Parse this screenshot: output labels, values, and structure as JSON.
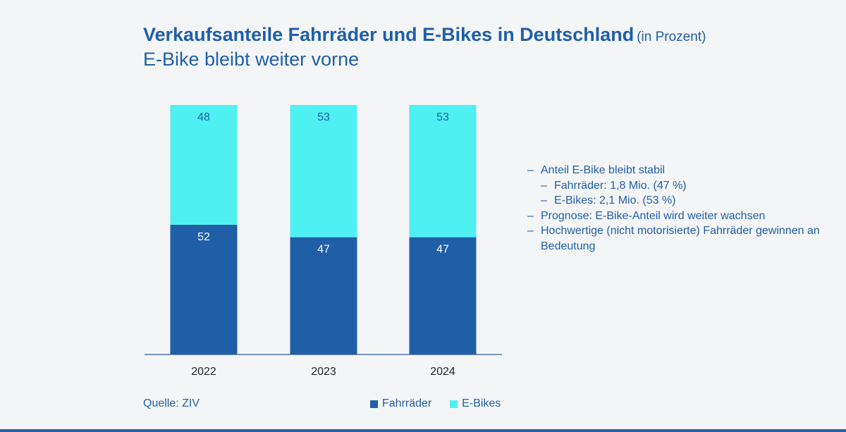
{
  "header": {
    "title": "Verkaufsanteile Fahrräder und E-Bikes in Deutschland",
    "title_unit": "(in Prozent)",
    "subtitle": "E-Bike bleibt weiter vorne"
  },
  "colors": {
    "fahrraeder": "#1f5fa8",
    "ebikes": "#4ef0f2",
    "text": "#1f5fa8"
  },
  "chart_data": {
    "type": "bar",
    "stacked": true,
    "categories": [
      "2022",
      "2023",
      "2024"
    ],
    "series": [
      {
        "name": "Fahrräder",
        "values": [
          52,
          47,
          47
        ]
      },
      {
        "name": "E-Bikes",
        "values": [
          48,
          53,
          53
        ]
      }
    ],
    "ylim": [
      0,
      100
    ],
    "grid": false,
    "legend_position": "bottom"
  },
  "notes": [
    {
      "text": "Anteil E-Bike bleibt stabil",
      "sub": [
        {
          "text": "Fahrräder: 1,8 Mio. (47 %)"
        },
        {
          "text": "E-Bikes: 2,1 Mio. (53 %)"
        }
      ]
    },
    {
      "text": "Prognose: E-Bike-Anteil wird weiter wachsen"
    },
    {
      "text": "Hochwertige (nicht motorisierte) Fahrräder gewinnen an Bedeutung"
    }
  ],
  "source": "Quelle: ZIV",
  "legend": {
    "fahrraeder_label": "Fahrräder",
    "ebikes_label": "E-Bikes"
  }
}
